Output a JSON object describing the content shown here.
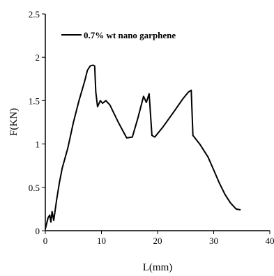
{
  "chart_data": {
    "type": "line",
    "xlabel": "L(mm)",
    "ylabel": "F(KN)",
    "xlim": [
      0,
      40
    ],
    "ylim": [
      0,
      2.5
    ],
    "x_ticks": [
      "0",
      "10",
      "20",
      "30",
      "40"
    ],
    "y_ticks": [
      "0",
      "0.5",
      "1",
      "1.5",
      "2",
      "2.5"
    ],
    "grid": false,
    "legend_position": "top-left",
    "series": [
      {
        "name": "0.7% wt nano garphene",
        "color": "#000000",
        "points": [
          [
            0,
            0.02
          ],
          [
            0.5,
            0.15
          ],
          [
            0.8,
            0.18
          ],
          [
            1.0,
            0.1
          ],
          [
            1.2,
            0.22
          ],
          [
            1.5,
            0.12
          ],
          [
            2.0,
            0.35
          ],
          [
            2.5,
            0.55
          ],
          [
            3.0,
            0.72
          ],
          [
            4.0,
            0.95
          ],
          [
            5.0,
            1.25
          ],
          [
            6.0,
            1.5
          ],
          [
            7.0,
            1.72
          ],
          [
            7.5,
            1.85
          ],
          [
            8.0,
            1.9
          ],
          [
            8.5,
            1.91
          ],
          [
            8.8,
            1.9
          ],
          [
            9.0,
            1.6
          ],
          [
            9.3,
            1.43
          ],
          [
            9.8,
            1.5
          ],
          [
            10.2,
            1.47
          ],
          [
            10.8,
            1.5
          ],
          [
            11.5,
            1.45
          ],
          [
            13.0,
            1.25
          ],
          [
            14.5,
            1.07
          ],
          [
            15.5,
            1.08
          ],
          [
            16.5,
            1.3
          ],
          [
            17.5,
            1.55
          ],
          [
            18.0,
            1.48
          ],
          [
            18.5,
            1.58
          ],
          [
            19.0,
            1.1
          ],
          [
            19.5,
            1.08
          ],
          [
            21.0,
            1.2
          ],
          [
            23.0,
            1.38
          ],
          [
            24.5,
            1.52
          ],
          [
            25.5,
            1.6
          ],
          [
            26.0,
            1.62
          ],
          [
            26.3,
            1.1
          ],
          [
            27.5,
            1.0
          ],
          [
            29.0,
            0.85
          ],
          [
            30.0,
            0.7
          ],
          [
            31.0,
            0.55
          ],
          [
            32.0,
            0.42
          ],
          [
            33.0,
            0.32
          ],
          [
            34.0,
            0.25
          ],
          [
            34.8,
            0.24
          ]
        ]
      }
    ]
  }
}
